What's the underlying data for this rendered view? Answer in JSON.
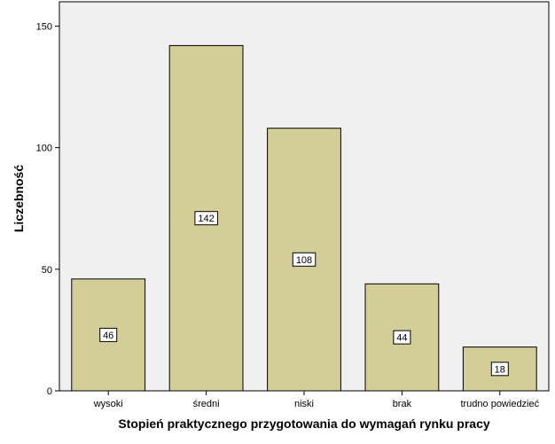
{
  "chart_data": {
    "type": "bar",
    "title": "",
    "xlabel": "Stopień praktycznego przygotowania do wymagań rynku pracy",
    "ylabel": "Liczebność",
    "categories": [
      "wysoki",
      "średni",
      "niski",
      "brak",
      "trudno powiedzieć"
    ],
    "values": [
      46,
      142,
      108,
      44,
      18
    ],
    "data_labels": [
      "46",
      "142",
      "108",
      "44",
      "18"
    ],
    "ylim": [
      0,
      160
    ],
    "yticks": [
      0,
      50,
      100,
      150
    ],
    "ytick_labels": [
      "0",
      "50",
      "100",
      "150"
    ],
    "grid": false,
    "legend": "none",
    "colors": {
      "bar_fill": "#d3ce98",
      "bar_stroke": "#000000",
      "plot_background": "#f0f0f0",
      "page_background": "#ffffff"
    }
  }
}
